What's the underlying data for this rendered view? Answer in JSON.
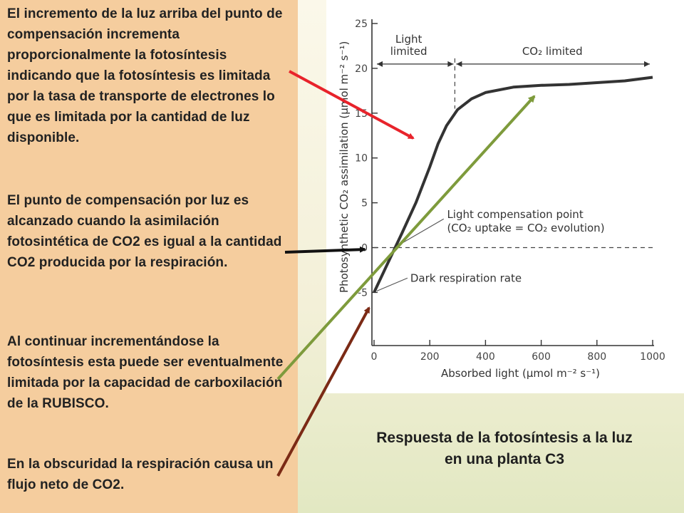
{
  "paragraphs": [
    "El incremento de la luz arriba del punto de compensación incrementa proporcionalmente la fotosíntesis indicando que la fotosíntesis es limitada por la tasa de transporte de electrones lo que es limitada por la cantidad de luz disponible.",
    "El punto de compensación por luz es alcanzado cuando la asimilación fotosintética de CO2 es igual a la cantidad CO2 producida por la respiración.",
    "Al continuar incrementándose la fotosíntesis  esta puede ser eventualmente limitada por la capacidad de carboxilación de la RUBISCO.",
    "En la obscuridad la respiración causa un flujo neto de CO2."
  ],
  "caption": "Respuesta de la fotosíntesis a la luz\nen una planta C3",
  "colors": {
    "left_bg": "#f5cd9e",
    "red_arrow": "#e8232b",
    "black_arrow": "#111111",
    "green_arrow": "#7e9b3c",
    "brown_arrow": "#7b2a15",
    "curve": "#333333"
  },
  "chart_data": {
    "type": "line",
    "xlabel": "Absorbed light (μmol m⁻² s⁻¹)",
    "ylabel": "Photosynthetic CO₂ assimilation (μmol m⁻² s⁻¹)",
    "xlim": [
      0,
      1000
    ],
    "ylim": [
      -6,
      25
    ],
    "xticks": [
      0,
      200,
      400,
      600,
      800,
      1000
    ],
    "yticks": [
      -5,
      0,
      5,
      10,
      15,
      20,
      25
    ],
    "series": [
      {
        "x": [
          0,
          50,
          100,
          150,
          200,
          230,
          260,
          300,
          350,
          400,
          500,
          600,
          700,
          800,
          900,
          1000
        ],
        "y": [
          -5.0,
          -1.7,
          1.6,
          5.0,
          9.0,
          11.6,
          13.6,
          15.4,
          16.6,
          17.3,
          17.9,
          18.1,
          18.2,
          18.4,
          18.6,
          19.0
        ]
      }
    ],
    "zero_line": 0,
    "annotations": [
      {
        "text": "Light\nlimited",
        "range": [
          0,
          290
        ]
      },
      {
        "text": "CO₂ limited",
        "range": [
          290,
          1000
        ]
      },
      {
        "text": "Light compensation point\n(CO₂ uptake = CO₂ evolution)",
        "x": 80,
        "y": 0
      },
      {
        "text": "Dark respiration rate",
        "x": 0,
        "y": -5
      }
    ],
    "limit_divider_x": 290
  }
}
